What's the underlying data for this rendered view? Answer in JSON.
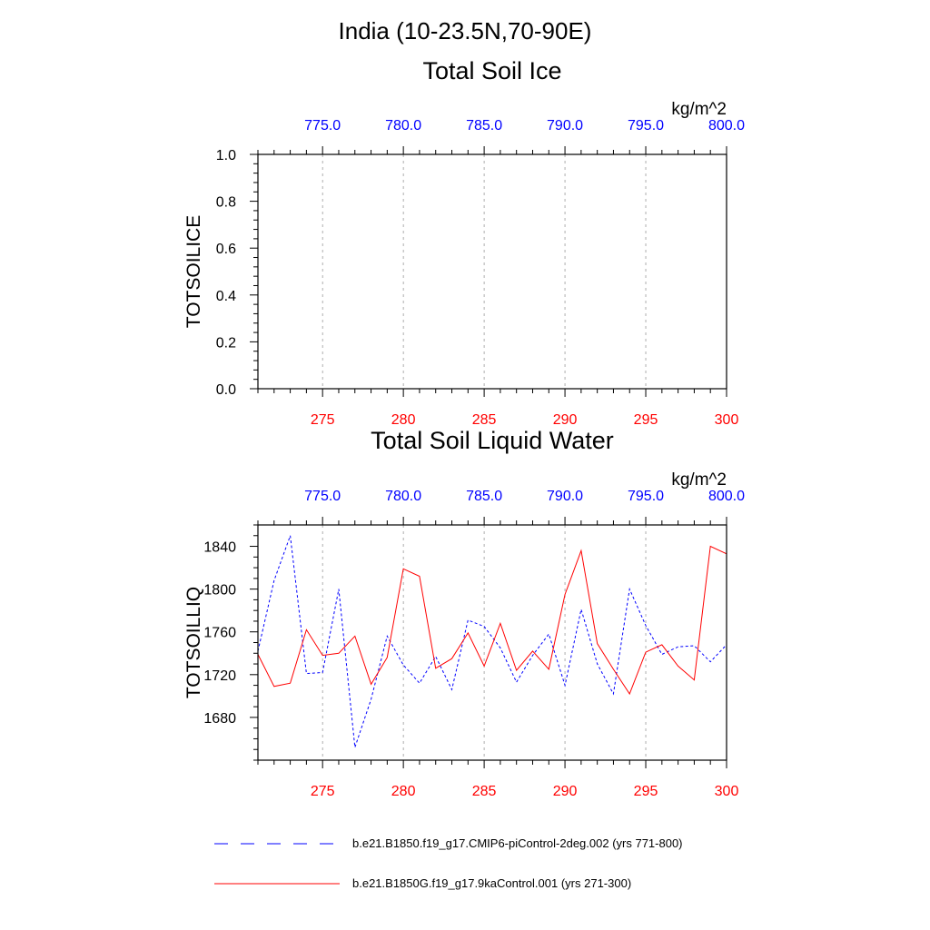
{
  "page": {
    "region_title": "India (10-23.5N,70-90E)"
  },
  "chart_data": [
    {
      "type": "line",
      "title": "Total Soil Ice",
      "ylabel": "TOTSOILICE",
      "units": "kg/m^2",
      "xlim": [
        271,
        300
      ],
      "top_xlim": [
        771,
        800
      ],
      "ylim": [
        0,
        1
      ],
      "bottom_ticks": [
        275,
        280,
        285,
        290,
        295,
        300
      ],
      "bottom_tick_labels": [
        "275",
        "280",
        "285",
        "290",
        "295",
        "300"
      ],
      "top_ticks": [
        775,
        780,
        785,
        790,
        795,
        800
      ],
      "top_tick_labels": [
        "775.0",
        "780.0",
        "785.0",
        "790.0",
        "795.0",
        "800.0"
      ],
      "y_ticks": [
        0,
        0.2,
        0.4,
        0.6,
        0.8,
        1.0
      ],
      "y_tick_labels": [
        "0.0",
        "0.2",
        "0.4",
        "0.6",
        "0.8",
        "1.0"
      ],
      "grid": "vertical dashed",
      "series": [
        {
          "name": "b.e21.B1850.f19_g17.CMIP6-piControl-2deg.002 (yrs 771-800)",
          "color": "#0000ff",
          "style": "dashed",
          "axis": "top",
          "x": [
            771,
            772,
            773,
            774,
            775,
            776,
            777,
            778,
            779,
            780,
            781,
            782,
            783,
            784,
            785,
            786,
            787,
            788,
            789,
            790,
            791,
            792,
            793,
            794,
            795,
            796,
            797,
            798,
            799,
            800
          ],
          "values": [
            0,
            0,
            0,
            0,
            0,
            0,
            0,
            0,
            0,
            0,
            0,
            0,
            0,
            0,
            0,
            0,
            0,
            0,
            0,
            0,
            0,
            0,
            0,
            0,
            0,
            0,
            0,
            0,
            0,
            0
          ]
        },
        {
          "name": "b.e21.B1850G.f19_g17.9kaControl.001 (yrs 271-300)",
          "color": "#ff0000",
          "style": "solid",
          "axis": "bottom",
          "x": [
            271,
            272,
            273,
            274,
            275,
            276,
            277,
            278,
            279,
            280,
            281,
            282,
            283,
            284,
            285,
            286,
            287,
            288,
            289,
            290,
            291,
            292,
            293,
            294,
            295,
            296,
            297,
            298,
            299,
            300
          ],
          "values": [
            0,
            0,
            0,
            0,
            0,
            0,
            0,
            0,
            0,
            0,
            0,
            0,
            0,
            0,
            0,
            0,
            0,
            0,
            0,
            0,
            0,
            0,
            0,
            0,
            0,
            0,
            0,
            0,
            0,
            0
          ]
        }
      ]
    },
    {
      "type": "line",
      "title": "Total Soil Liquid Water",
      "ylabel": "TOTSOILLIQ",
      "units": "kg/m^2",
      "xlim": [
        271,
        300
      ],
      "top_xlim": [
        771,
        800
      ],
      "ylim": [
        1640,
        1860
      ],
      "bottom_ticks": [
        275,
        280,
        285,
        290,
        295,
        300
      ],
      "bottom_tick_labels": [
        "275",
        "280",
        "285",
        "290",
        "295",
        "300"
      ],
      "top_ticks": [
        775,
        780,
        785,
        790,
        795,
        800
      ],
      "top_tick_labels": [
        "775.0",
        "780.0",
        "785.0",
        "790.0",
        "795.0",
        "800.0"
      ],
      "y_ticks": [
        1680,
        1720,
        1760,
        1800,
        1840
      ],
      "y_tick_labels": [
        "1680",
        "1720",
        "1760",
        "1800",
        "1840"
      ],
      "grid": "vertical dashed",
      "series": [
        {
          "name": "b.e21.B1850.f19_g17.CMIP6-piControl-2deg.002 (yrs 771-800)",
          "color": "#0000ff",
          "style": "dashed",
          "axis": "top",
          "x": [
            771,
            772,
            773,
            774,
            775,
            776,
            777,
            778,
            779,
            780,
            781,
            782,
            783,
            784,
            785,
            786,
            787,
            788,
            789,
            790,
            791,
            792,
            793,
            794,
            795,
            796,
            797,
            798,
            799,
            800
          ],
          "values": [
            1742,
            1808,
            1850,
            1721,
            1722,
            1800,
            1652,
            1697,
            1756,
            1729,
            1712,
            1737,
            1706,
            1771,
            1765,
            1745,
            1713,
            1738,
            1758,
            1710,
            1781,
            1730,
            1702,
            1800,
            1766,
            1739,
            1746,
            1747,
            1732,
            1748
          ]
        },
        {
          "name": "b.e21.B1850G.f19_g17.9kaControl.001 (yrs 271-300)",
          "color": "#ff0000",
          "style": "solid",
          "axis": "bottom",
          "x": [
            271,
            272,
            273,
            274,
            275,
            276,
            277,
            278,
            279,
            280,
            281,
            282,
            283,
            284,
            285,
            286,
            287,
            288,
            289,
            290,
            291,
            292,
            293,
            294,
            295,
            296,
            297,
            298,
            299,
            300
          ],
          "values": [
            1739,
            1709,
            1712,
            1762,
            1738,
            1740,
            1756,
            1711,
            1736,
            1819,
            1812,
            1726,
            1735,
            1759,
            1728,
            1768,
            1724,
            1742,
            1725,
            1795,
            1836,
            1749,
            1725,
            1702,
            1741,
            1748,
            1728,
            1715,
            1840,
            1833
          ]
        }
      ]
    }
  ]
}
